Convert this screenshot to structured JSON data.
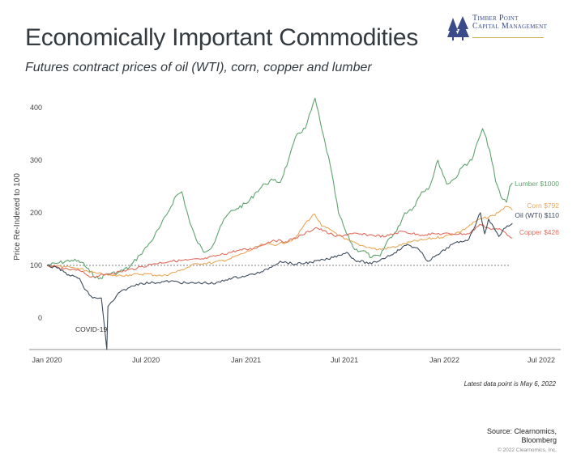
{
  "header": {
    "title": "Economically Important Commodities",
    "subtitle": "Futures contract prices of oil (WTI), corn, copper and lumber"
  },
  "logo": {
    "line1": "Timber Point",
    "line2": "Capital Management"
  },
  "footer": {
    "note": "Latest data point is May 6, 2022",
    "source_line1": "Source: Clearnomics,",
    "source_line2": "Bloomberg",
    "copyright": "© 2022 Clearnomics, Inc."
  },
  "colors": {
    "lumber": "#5fa36e",
    "corn": "#e8a85a",
    "copper": "#e06c5c",
    "oil": "#3d4b5c",
    "axis": "#555555",
    "reference": "#555555"
  },
  "chart_data": {
    "type": "line",
    "ylabel": "Price Re-Indexed to 100",
    "xlabel": "",
    "ylim": [
      -60,
      420
    ],
    "yticks": [
      0,
      100,
      200,
      300,
      400
    ],
    "xticks": [
      "Jan 2020",
      "Jul 2020",
      "Jan 2021",
      "Jul 2021",
      "Jan 2022",
      "Jul 2022"
    ],
    "xrange": [
      "2020-01-01",
      "2022-07-01"
    ],
    "reference_line": 100,
    "annotation": "COVID-19",
    "series": [
      {
        "name": "Lumber",
        "end_label": "Lumber $1000",
        "color": "#5fa36e",
        "points": [
          [
            "2020-01-01",
            100
          ],
          [
            "2020-01-20",
            104
          ],
          [
            "2020-02-15",
            110
          ],
          [
            "2020-03-05",
            106
          ],
          [
            "2020-03-20",
            88
          ],
          [
            "2020-04-05",
            74
          ],
          [
            "2020-04-20",
            84
          ],
          [
            "2020-05-10",
            86
          ],
          [
            "2020-06-01",
            97
          ],
          [
            "2020-06-20",
            120
          ],
          [
            "2020-07-10",
            145
          ],
          [
            "2020-07-25",
            170
          ],
          [
            "2020-08-10",
            200
          ],
          [
            "2020-08-25",
            232
          ],
          [
            "2020-09-05",
            240
          ],
          [
            "2020-09-20",
            180
          ],
          [
            "2020-10-01",
            150
          ],
          [
            "2020-10-15",
            125
          ],
          [
            "2020-11-01",
            138
          ],
          [
            "2020-11-15",
            175
          ],
          [
            "2020-12-01",
            200
          ],
          [
            "2020-12-15",
            208
          ],
          [
            "2021-01-05",
            220
          ],
          [
            "2021-01-20",
            240
          ],
          [
            "2021-02-05",
            255
          ],
          [
            "2021-02-20",
            262
          ],
          [
            "2021-03-05",
            258
          ],
          [
            "2021-03-20",
            300
          ],
          [
            "2021-04-05",
            350
          ],
          [
            "2021-04-20",
            360
          ],
          [
            "2021-05-01",
            395
          ],
          [
            "2021-05-08",
            418
          ],
          [
            "2021-05-20",
            360
          ],
          [
            "2021-06-05",
            290
          ],
          [
            "2021-06-20",
            200
          ],
          [
            "2021-07-05",
            160
          ],
          [
            "2021-07-20",
            130
          ],
          [
            "2021-08-05",
            128
          ],
          [
            "2021-08-20",
            115
          ],
          [
            "2021-09-05",
            118
          ],
          [
            "2021-09-20",
            150
          ],
          [
            "2021-10-05",
            165
          ],
          [
            "2021-10-20",
            200
          ],
          [
            "2021-11-05",
            210
          ],
          [
            "2021-11-20",
            240
          ],
          [
            "2021-12-05",
            250
          ],
          [
            "2021-12-20",
            300
          ],
          [
            "2022-01-05",
            255
          ],
          [
            "2022-01-20",
            265
          ],
          [
            "2022-02-05",
            290
          ],
          [
            "2022-02-20",
            300
          ],
          [
            "2022-03-05",
            340
          ],
          [
            "2022-03-12",
            360
          ],
          [
            "2022-03-25",
            320
          ],
          [
            "2022-04-05",
            260
          ],
          [
            "2022-04-15",
            230
          ],
          [
            "2022-04-25",
            220
          ],
          [
            "2022-05-01",
            250
          ],
          [
            "2022-05-06",
            257
          ]
        ]
      },
      {
        "name": "Corn",
        "end_label": "Corn $792",
        "color": "#e8a85a",
        "points": [
          [
            "2020-01-01",
            100
          ],
          [
            "2020-02-01",
            98
          ],
          [
            "2020-03-01",
            93
          ],
          [
            "2020-04-01",
            85
          ],
          [
            "2020-05-01",
            80
          ],
          [
            "2020-06-01",
            82
          ],
          [
            "2020-07-01",
            84
          ],
          [
            "2020-08-01",
            80
          ],
          [
            "2020-09-01",
            90
          ],
          [
            "2020-10-01",
            103
          ],
          [
            "2020-11-01",
            105
          ],
          [
            "2020-12-01",
            112
          ],
          [
            "2021-01-01",
            125
          ],
          [
            "2021-02-01",
            140
          ],
          [
            "2021-03-01",
            140
          ],
          [
            "2021-04-01",
            150
          ],
          [
            "2021-04-20",
            180
          ],
          [
            "2021-05-07",
            198
          ],
          [
            "2021-05-20",
            175
          ],
          [
            "2021-06-10",
            165
          ],
          [
            "2021-07-01",
            150
          ],
          [
            "2021-08-01",
            138
          ],
          [
            "2021-09-01",
            130
          ],
          [
            "2021-10-01",
            135
          ],
          [
            "2021-11-01",
            145
          ],
          [
            "2021-12-01",
            150
          ],
          [
            "2022-01-01",
            155
          ],
          [
            "2022-02-01",
            165
          ],
          [
            "2022-03-01",
            185
          ],
          [
            "2022-04-01",
            195
          ],
          [
            "2022-04-25",
            212
          ],
          [
            "2022-05-06",
            205
          ]
        ]
      },
      {
        "name": "Copper",
        "end_label": "Copper $426",
        "color": "#e06c5c",
        "points": [
          [
            "2020-01-01",
            100
          ],
          [
            "2020-02-01",
            93
          ],
          [
            "2020-03-01",
            90
          ],
          [
            "2020-03-23",
            78
          ],
          [
            "2020-04-15",
            82
          ],
          [
            "2020-05-15",
            88
          ],
          [
            "2020-06-15",
            95
          ],
          [
            "2020-07-15",
            103
          ],
          [
            "2020-08-15",
            108
          ],
          [
            "2020-09-15",
            110
          ],
          [
            "2020-10-15",
            112
          ],
          [
            "2020-11-15",
            120
          ],
          [
            "2020-12-15",
            128
          ],
          [
            "2021-01-15",
            132
          ],
          [
            "2021-02-20",
            148
          ],
          [
            "2021-03-15",
            145
          ],
          [
            "2021-04-15",
            158
          ],
          [
            "2021-05-10",
            172
          ],
          [
            "2021-06-15",
            155
          ],
          [
            "2021-07-15",
            160
          ],
          [
            "2021-08-15",
            158
          ],
          [
            "2021-09-15",
            155
          ],
          [
            "2021-10-15",
            165
          ],
          [
            "2021-11-15",
            158
          ],
          [
            "2021-12-15",
            160
          ],
          [
            "2022-01-15",
            160
          ],
          [
            "2022-02-15",
            160
          ],
          [
            "2022-03-07",
            178
          ],
          [
            "2022-03-25",
            170
          ],
          [
            "2022-04-15",
            168
          ],
          [
            "2022-05-06",
            152
          ]
        ]
      },
      {
        "name": "Oil (WTI)",
        "end_label": "Oil (WTI) $110",
        "color": "#3d4b5c",
        "points": [
          [
            "2020-01-01",
            100
          ],
          [
            "2020-01-20",
            95
          ],
          [
            "2020-02-10",
            82
          ],
          [
            "2020-03-01",
            75
          ],
          [
            "2020-03-10",
            55
          ],
          [
            "2020-03-25",
            38
          ],
          [
            "2020-04-10",
            38
          ],
          [
            "2020-04-20",
            -60
          ],
          [
            "2020-04-22",
            22
          ],
          [
            "2020-05-01",
            32
          ],
          [
            "2020-05-15",
            50
          ],
          [
            "2020-06-01",
            58
          ],
          [
            "2020-06-20",
            66
          ],
          [
            "2020-07-15",
            67
          ],
          [
            "2020-08-15",
            70
          ],
          [
            "2020-09-15",
            66
          ],
          [
            "2020-10-15",
            67
          ],
          [
            "2020-11-05",
            65
          ],
          [
            "2020-12-01",
            75
          ],
          [
            "2021-01-01",
            80
          ],
          [
            "2021-02-01",
            88
          ],
          [
            "2021-03-05",
            108
          ],
          [
            "2021-04-01",
            102
          ],
          [
            "2021-05-01",
            106
          ],
          [
            "2021-06-01",
            112
          ],
          [
            "2021-07-05",
            125
          ],
          [
            "2021-07-20",
            110
          ],
          [
            "2021-08-20",
            103
          ],
          [
            "2021-09-10",
            113
          ],
          [
            "2021-10-01",
            124
          ],
          [
            "2021-10-25",
            140
          ],
          [
            "2021-11-15",
            130
          ],
          [
            "2021-12-01",
            108
          ],
          [
            "2021-12-20",
            120
          ],
          [
            "2022-01-15",
            140
          ],
          [
            "2022-02-15",
            150
          ],
          [
            "2022-03-08",
            200
          ],
          [
            "2022-03-16",
            160
          ],
          [
            "2022-03-23",
            188
          ],
          [
            "2022-04-11",
            155
          ],
          [
            "2022-04-20",
            170
          ],
          [
            "2022-05-06",
            180
          ]
        ]
      }
    ]
  }
}
